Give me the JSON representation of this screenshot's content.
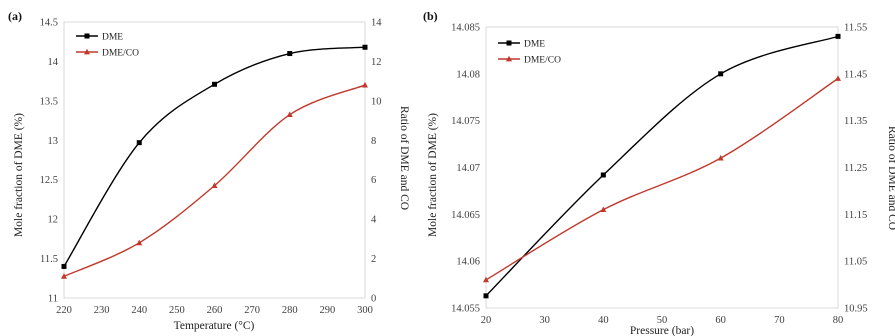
{
  "chart_data": [
    {
      "type": "line",
      "panel_label": "(a)",
      "xlabel": "Temperature (°C)",
      "ylabel": "Mole fraction of DME (%)",
      "y2label": "Ratio of DME and CO",
      "xlim": [
        220,
        300
      ],
      "ylim": [
        11,
        14.5
      ],
      "y2lim": [
        0,
        14
      ],
      "x_ticks": [
        "220",
        "230",
        "240",
        "250",
        "260",
        "270",
        "280",
        "290",
        "300"
      ],
      "y_ticks": [
        "11",
        "11.5",
        "12",
        "12.5",
        "13",
        "13.5",
        "14",
        "14.5"
      ],
      "y2_ticks": [
        "0",
        "2",
        "4",
        "6",
        "8",
        "10",
        "12",
        "14"
      ],
      "legend_position": "top-left",
      "series": [
        {
          "name": "DME",
          "axis": "left",
          "color": "#000000",
          "marker": "square",
          "x": [
            220,
            240,
            260,
            280,
            300
          ],
          "y": [
            11.4,
            12.97,
            13.71,
            14.1,
            14.18
          ]
        },
        {
          "name": "DME/CO",
          "axis": "right",
          "color": "#c0392b",
          "marker": "triangle",
          "x": [
            220,
            240,
            260,
            280,
            300
          ],
          "y": [
            1.1,
            2.8,
            5.7,
            9.3,
            10.8
          ]
        }
      ]
    },
    {
      "type": "line",
      "panel_label": "(b)",
      "xlabel": "Pressure (bar)",
      "ylabel": "Mole fraction of DME (%)",
      "y2label": "Ratio of DME and CO",
      "xlim": [
        20,
        80
      ],
      "ylim": [
        14.055,
        14.085
      ],
      "y2lim": [
        10.95,
        11.55
      ],
      "x_ticks": [
        "20",
        "30",
        "40",
        "50",
        "60",
        "70",
        "80"
      ],
      "y_ticks": [
        "14.055",
        "14.06",
        "14.065",
        "14.07",
        "14.075",
        "14.08",
        "14.085"
      ],
      "y2_ticks": [
        "10.95",
        "11.05",
        "11.15",
        "11.25",
        "11.35",
        "11.45",
        "11.55"
      ],
      "legend_position": "top-left",
      "series": [
        {
          "name": "DME",
          "axis": "left",
          "color": "#000000",
          "marker": "square",
          "x": [
            20,
            40,
            60,
            80
          ],
          "y": [
            14.0563,
            14.0692,
            14.08,
            14.084
          ]
        },
        {
          "name": "DME/CO",
          "axis": "right",
          "color": "#c0392b",
          "marker": "triangle",
          "x": [
            20,
            40,
            60,
            80
          ],
          "y": [
            11.01,
            11.16,
            11.27,
            11.44
          ]
        }
      ]
    }
  ]
}
